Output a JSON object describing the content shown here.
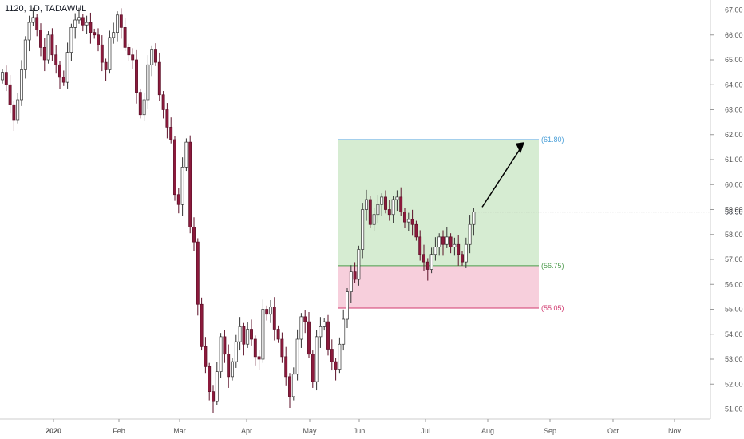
{
  "header": {
    "symbol_line": "1120, 1D, TADAWUL"
  },
  "colors": {
    "up": "#ffffff",
    "up_border": "#333333",
    "down": "#8b1a3c",
    "down_border": "#5b0f27",
    "target_zone": "#d6ecd2",
    "stop_zone": "#f7cfdc",
    "target_line": "#4a9fd8",
    "entry_line": "#4c9a4c",
    "stop_line": "#d0386e",
    "arrow": "#000000",
    "grid": "#eeeeee",
    "axis_text": "#555555"
  },
  "chart_data": {
    "type": "candlestick",
    "title": "",
    "ylim": [
      50.6,
      67.4
    ],
    "y_ticks": [
      "67.00",
      "66.00",
      "65.00",
      "64.00",
      "63.00",
      "62.00",
      "61.00",
      "60.00",
      "59.00",
      "58.00",
      "57.00",
      "56.00",
      "55.00",
      "54.00",
      "53.00",
      "52.00",
      "51.00"
    ],
    "x_ticks": [
      "2020",
      "Feb",
      "Mar",
      "Apr",
      "May",
      "Jun",
      "Jul",
      "Aug",
      "Sep",
      "Oct",
      "Nov"
    ],
    "last_price_label": "58.90",
    "levels": [
      {
        "label": "(61.80)",
        "value": 61.8,
        "kind": "target"
      },
      {
        "label": "(56.75)",
        "value": 56.75,
        "kind": "entry"
      },
      {
        "label": "(55.05)",
        "value": 55.05,
        "kind": "stop"
      }
    ],
    "closes": [
      64.5,
      64.0,
      63.2,
      62.6,
      63.4,
      64.6,
      65.8,
      66.5,
      66.7,
      66.2,
      65.5,
      65.0,
      66.0,
      65.2,
      64.8,
      64.3,
      64.1,
      65.3,
      66.3,
      66.6,
      66.7,
      66.4,
      66.5,
      66.1,
      66.0,
      65.6,
      64.9,
      64.6,
      65.9,
      66.1,
      66.8,
      66.3,
      65.5,
      65.2,
      65.0,
      63.7,
      62.8,
      63.4,
      64.8,
      65.4,
      64.9,
      63.6,
      63.0,
      62.3,
      61.8,
      59.6,
      59.2,
      60.7,
      61.7,
      58.3,
      57.7,
      55.2,
      53.5,
      52.7,
      51.7,
      51.3,
      52.5,
      53.9,
      53.2,
      52.3,
      52.9,
      53.7,
      54.3,
      53.6,
      54.2,
      53.8,
      53.1,
      53.0,
      55.0,
      54.8,
      55.1,
      54.2,
      53.8,
      53.1,
      52.3,
      51.5,
      52.4,
      53.8,
      54.7,
      54.5,
      53.2,
      52.1,
      53.9,
      54.3,
      54.5,
      53.4,
      52.9,
      52.6,
      53.6,
      54.6,
      55.7,
      56.5,
      56.2,
      57.4,
      59.0,
      59.4,
      58.4,
      58.8,
      59.2,
      59.5,
      59.0,
      58.8,
      59.4,
      59.5,
      58.9,
      58.5,
      58.6,
      58.4,
      57.9,
      57.2,
      56.9,
      56.6,
      57.2,
      57.5,
      57.9,
      57.6,
      57.9,
      57.5,
      57.6,
      57.2,
      56.9,
      57.6,
      58.4,
      58.9
    ]
  }
}
